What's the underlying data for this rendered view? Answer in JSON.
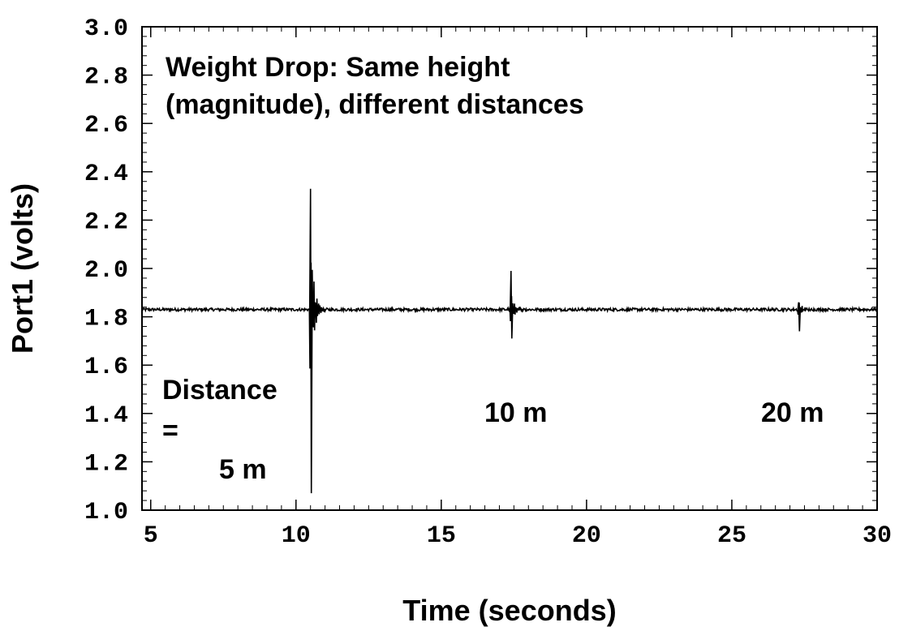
{
  "chart_data": {
    "type": "line",
    "xlabel": "Time (seconds)",
    "ylabel": "Port1 (volts)",
    "xlim": [
      4.7,
      30
    ],
    "ylim": [
      1.0,
      3.0
    ],
    "x_ticks": [
      "5",
      "10",
      "15",
      "20",
      "25",
      "30"
    ],
    "x_tick_values": [
      5,
      10,
      15,
      20,
      25,
      30
    ],
    "y_ticks": [
      "3.0",
      "2.8",
      "2.6",
      "2.4",
      "2.2",
      "2.0",
      "1.8",
      "1.6",
      "1.4",
      "1.2",
      "1.0"
    ],
    "y_tick_values": [
      3.0,
      2.8,
      2.6,
      2.4,
      2.2,
      2.0,
      1.8,
      1.6,
      1.4,
      1.2,
      1.0
    ],
    "grid": false,
    "baseline": 1.83,
    "events": [
      {
        "t": 10.5,
        "max": 2.33,
        "min": 1.07,
        "label": "5 m"
      },
      {
        "t": 17.4,
        "max": 1.99,
        "min": 1.71,
        "label": "10 m"
      },
      {
        "t": 27.3,
        "max": 1.86,
        "min": 1.74,
        "label": "20 m"
      }
    ],
    "annotations": {
      "title_line1": "Weight Drop: Same height",
      "title_line2": "(magnitude), different distances",
      "distance_line1": "Distance",
      "distance_line2": "=",
      "label_5m": "5 m",
      "label_10m": "10 m",
      "label_20m": "20 m"
    }
  }
}
